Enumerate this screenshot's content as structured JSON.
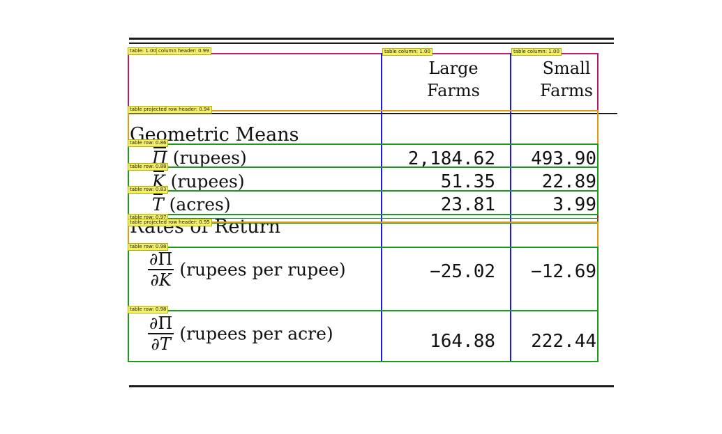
{
  "table": {
    "columns": [
      "",
      "Large Farms",
      "Small Farms"
    ],
    "column_heads": [
      {
        "line1": "Large",
        "line2": "Farms"
      },
      {
        "line1": "Small",
        "line2": "Farms"
      }
    ],
    "sections": [
      {
        "title": "Geometric Means",
        "rows": [
          {
            "symbol": "Π",
            "unit": "(rupees)",
            "large": "2,184.62",
            "small": "493.90"
          },
          {
            "symbol": "K",
            "unit": "(rupees)",
            "large": "51.35",
            "small": "22.89"
          },
          {
            "symbol": "T",
            "unit": "(acres)",
            "large": "23.81",
            "small": "3.99"
          }
        ]
      },
      {
        "title": "Rates of Return",
        "rows": [
          {
            "num": "∂Π",
            "den": "∂K",
            "unit": "(rupees per rupee)",
            "large": "−25.02",
            "small": "−12.69"
          },
          {
            "num": "∂Π",
            "den": "∂T",
            "unit": "(rupees per acre)",
            "large": "164.88",
            "small": "222.44"
          }
        ]
      }
    ]
  },
  "annotations": {
    "table": "table: 1.00",
    "column_header": "column header: 0.99",
    "col1": "table column: 1.00",
    "col2": "table column: 1.00",
    "proj_header_1": "table projected row header: 0.94",
    "row1": "table row: 0.86",
    "row2": "table row: 0.88",
    "row3": "table row: 0.83",
    "row4": "table row: 0.97",
    "proj_header_2": "table projected row header: 0.95",
    "row5": "table row: 0.98",
    "row6": "table row: 0.98"
  },
  "colors": {
    "table_box": "#d0103a",
    "column_box": "#1a1ae0",
    "row_box": "#1a9a1a",
    "projected_header_box": "#e09a10",
    "header_box": "#9a2ab0",
    "tag_bg": "#f4f06a"
  }
}
